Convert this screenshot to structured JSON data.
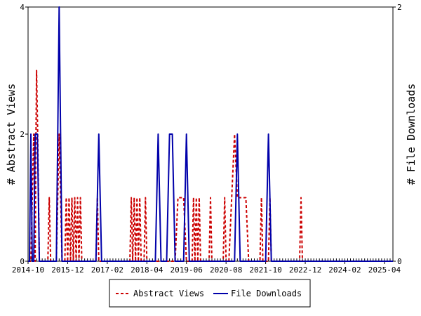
{
  "chart_data": {
    "type": "line",
    "ylabel_left": "# Abstract Views",
    "ylabel_right": "# File Downloads",
    "ylim_left": [
      0,
      4
    ],
    "ylim_right": [
      0,
      2
    ],
    "left_ticks": [
      "0",
      "2",
      "4"
    ],
    "right_ticks": [
      "0",
      "2"
    ],
    "x_tick_labels": [
      "2014-10",
      "2015-12",
      "2017-02",
      "2018-04",
      "2019-06",
      "2020-08",
      "2021-10",
      "2022-12",
      "2024-02",
      "2025-04"
    ],
    "x_range_months": [
      0,
      129
    ],
    "grid": false,
    "legend_position": "bottom-center",
    "colors": {
      "abstract": "#cc0000",
      "downloads": "#0000aa"
    },
    "series": [
      {
        "name": "Abstract Views",
        "axis": "left",
        "style": "dashed",
        "color": "#cc0000",
        "points": [
          [
            0,
            0
          ],
          [
            1,
            0
          ],
          [
            1.5,
            1
          ],
          [
            2,
            2
          ],
          [
            2.5,
            0
          ],
          [
            2.8,
            2
          ],
          [
            3,
            3
          ],
          [
            3.4,
            2
          ],
          [
            4,
            0
          ],
          [
            5,
            0
          ],
          [
            7,
            0
          ],
          [
            7.5,
            1
          ],
          [
            8,
            0
          ],
          [
            10,
            0
          ],
          [
            11,
            2
          ],
          [
            11.5,
            1
          ],
          [
            12,
            0
          ],
          [
            13,
            0
          ],
          [
            13.5,
            1
          ],
          [
            14,
            0
          ],
          [
            14.5,
            1
          ],
          [
            15,
            0
          ],
          [
            15.5,
            1
          ],
          [
            16,
            0
          ],
          [
            16.5,
            1
          ],
          [
            17,
            0
          ],
          [
            17.5,
            1
          ],
          [
            18,
            0
          ],
          [
            18.5,
            1
          ],
          [
            19,
            0
          ],
          [
            24,
            0
          ],
          [
            24.5,
            1
          ],
          [
            25,
            0
          ],
          [
            36,
            0
          ],
          [
            36.5,
            1
          ],
          [
            37,
            0
          ],
          [
            37.5,
            1
          ],
          [
            38,
            0
          ],
          [
            38.5,
            1
          ],
          [
            39,
            0
          ],
          [
            39.5,
            1
          ],
          [
            40,
            0
          ],
          [
            41,
            0
          ],
          [
            41.5,
            1
          ],
          [
            42,
            0
          ],
          [
            52,
            0
          ],
          [
            53,
            1
          ],
          [
            55,
            1
          ],
          [
            56,
            0
          ],
          [
            58,
            0
          ],
          [
            58.5,
            1
          ],
          [
            59,
            0
          ],
          [
            59.5,
            1
          ],
          [
            60,
            0
          ],
          [
            60.5,
            1
          ],
          [
            61,
            0
          ],
          [
            64,
            0
          ],
          [
            64.5,
            1
          ],
          [
            65,
            0
          ],
          [
            69,
            0
          ],
          [
            69.5,
            1
          ],
          [
            70,
            0
          ],
          [
            71,
            0
          ],
          [
            72,
            1
          ],
          [
            73,
            2
          ],
          [
            74,
            1
          ],
          [
            77,
            1
          ],
          [
            78,
            0
          ],
          [
            82,
            0
          ],
          [
            82.5,
            1
          ],
          [
            83,
            0
          ],
          [
            85,
            0
          ],
          [
            85.5,
            1
          ],
          [
            86,
            0
          ],
          [
            96,
            0
          ],
          [
            96.5,
            1
          ],
          [
            97,
            0
          ],
          [
            129,
            0
          ]
        ]
      },
      {
        "name": "File Downloads",
        "axis": "right",
        "style": "solid",
        "color": "#0000aa",
        "points": [
          [
            0,
            0
          ],
          [
            0.5,
            0
          ],
          [
            1,
            1
          ],
          [
            1.5,
            0
          ],
          [
            2,
            0
          ],
          [
            2.5,
            1
          ],
          [
            3.3,
            1
          ],
          [
            4,
            0
          ],
          [
            10,
            0
          ],
          [
            11,
            2
          ],
          [
            12,
            0
          ],
          [
            24,
            0
          ],
          [
            25,
            1
          ],
          [
            26,
            0
          ],
          [
            45,
            0
          ],
          [
            46,
            1
          ],
          [
            47,
            0
          ],
          [
            49,
            0
          ],
          [
            50,
            1
          ],
          [
            51,
            1
          ],
          [
            52,
            0
          ],
          [
            55,
            0
          ],
          [
            56,
            1
          ],
          [
            57,
            0
          ],
          [
            73,
            0
          ],
          [
            74,
            1
          ],
          [
            75,
            0
          ],
          [
            84,
            0
          ],
          [
            85,
            1
          ],
          [
            86,
            0
          ],
          [
            129,
            0
          ]
        ]
      }
    ]
  }
}
